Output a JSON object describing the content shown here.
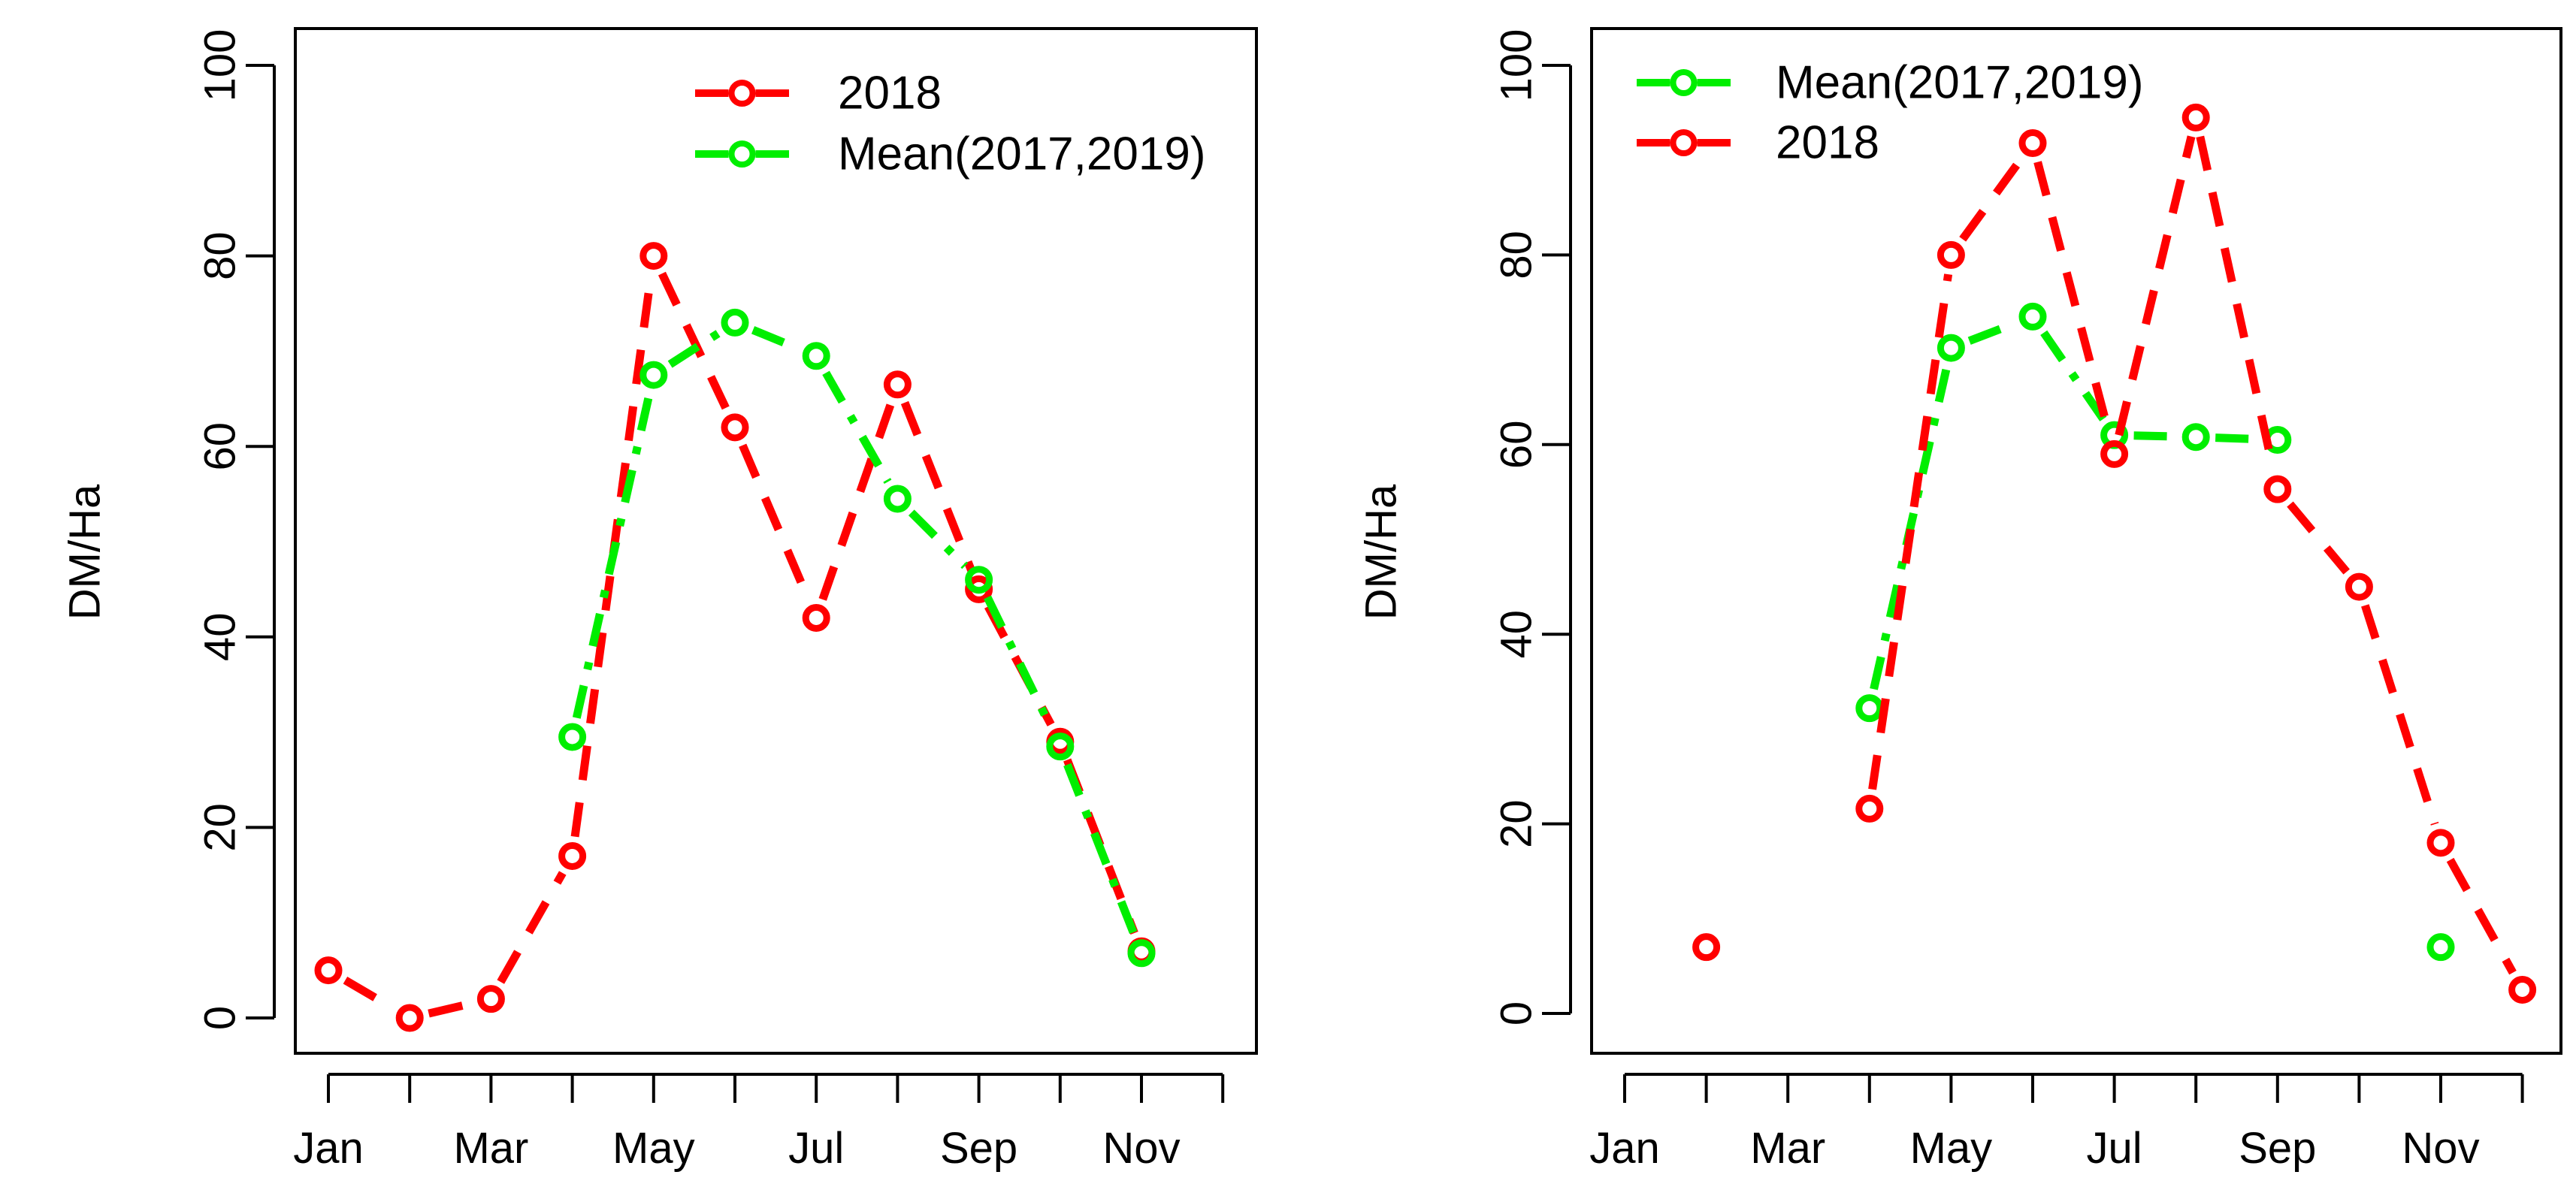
{
  "colors": {
    "series_2018": "#ff0000",
    "series_mean": "#00ee00",
    "axis": "#000000",
    "background": "#ffffff"
  },
  "chart_data": [
    {
      "type": "line",
      "panel": "left",
      "title": "",
      "xlabel": "",
      "ylabel": "DM/Ha",
      "ylim": [
        0,
        100
      ],
      "xlim": [
        1,
        12
      ],
      "x": [
        1,
        2,
        3,
        4,
        5,
        6,
        7,
        8,
        9,
        10,
        11,
        12
      ],
      "x_tick_labels": [
        "Jan",
        "Mar",
        "May",
        "Jul",
        "Sep",
        "Nov"
      ],
      "x_tick_label_positions": [
        1,
        3,
        5,
        7,
        9,
        11
      ],
      "y_ticks": [
        0,
        20,
        40,
        60,
        80,
        100
      ],
      "y_tick_labels": [
        "0",
        "20",
        "40",
        "60",
        "80",
        "100"
      ],
      "legend_position": "top-right",
      "series": [
        {
          "name": "2018",
          "color": "series_2018",
          "values": [
            5,
            0,
            2,
            17,
            80,
            62,
            42,
            66.5,
            45,
            29,
            7,
            null
          ]
        },
        {
          "name": "Mean(2017,2019)",
          "color": "series_mean",
          "values": [
            null,
            null,
            null,
            29.5,
            67.5,
            73,
            69.5,
            54.5,
            46,
            28.5,
            6.8,
            null
          ]
        }
      ],
      "legend": [
        "2018",
        "Mean(2017,2019)"
      ]
    },
    {
      "type": "line",
      "panel": "right",
      "title": "",
      "xlabel": "",
      "ylabel": "DM/Ha",
      "ylim": [
        0,
        100
      ],
      "xlim": [
        1,
        12
      ],
      "x": [
        1,
        2,
        3,
        4,
        5,
        6,
        7,
        8,
        9,
        10,
        11,
        12
      ],
      "x_tick_labels": [
        "Jan",
        "Mar",
        "May",
        "Jul",
        "Sep",
        "Nov"
      ],
      "x_tick_label_positions": [
        1,
        3,
        5,
        7,
        9,
        11
      ],
      "y_ticks": [
        0,
        20,
        40,
        60,
        80,
        100
      ],
      "y_tick_labels": [
        "0",
        "20",
        "40",
        "60",
        "80",
        "100"
      ],
      "legend_position": "top-left",
      "series": [
        {
          "name": "Mean(2017,2019)",
          "color": "series_mean",
          "values": [
            null,
            null,
            null,
            32.2,
            70.2,
            73.5,
            61,
            60.8,
            60.5,
            null,
            7,
            null
          ]
        },
        {
          "name": "2018",
          "color": "series_2018",
          "values": [
            null,
            7,
            null,
            21.6,
            80,
            91.8,
            59,
            94.5,
            55.3,
            45,
            18,
            2.5
          ]
        }
      ],
      "legend": [
        "Mean(2017,2019)",
        "2018"
      ]
    }
  ]
}
